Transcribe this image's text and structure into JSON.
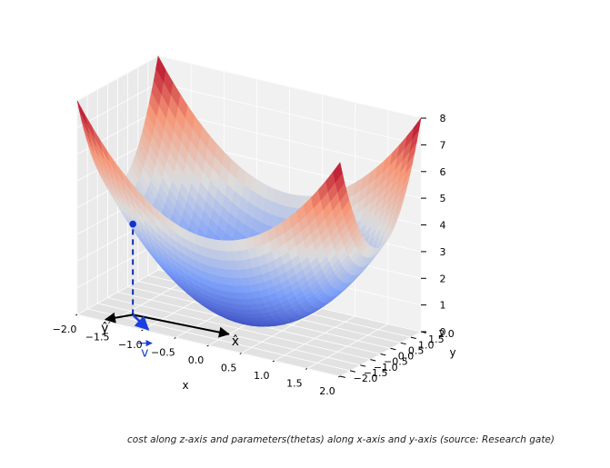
{
  "chart_data": {
    "type": "surface",
    "function": "z = x^2 + y^2",
    "x": [
      -2.0,
      -1.5,
      -1.0,
      -0.5,
      0.0,
      0.5,
      1.0,
      1.5,
      2.0
    ],
    "y": [
      -2.0,
      -1.5,
      -1.0,
      -0.5,
      0.0,
      0.5,
      1.0,
      1.5,
      2.0
    ],
    "z": [
      [
        8.0,
        6.25,
        5.0,
        4.25,
        4.0,
        4.25,
        5.0,
        6.25,
        8.0
      ],
      [
        6.25,
        4.5,
        3.25,
        2.5,
        2.25,
        2.5,
        3.25,
        4.5,
        6.25
      ],
      [
        5.0,
        3.25,
        2.0,
        1.25,
        1.0,
        1.25,
        2.0,
        3.25,
        5.0
      ],
      [
        4.25,
        2.5,
        1.25,
        0.5,
        0.25,
        0.5,
        1.25,
        2.5,
        4.25
      ],
      [
        4.0,
        2.25,
        1.0,
        0.25,
        0.0,
        0.25,
        1.0,
        2.25,
        4.0
      ],
      [
        4.25,
        2.5,
        1.25,
        0.5,
        0.25,
        0.5,
        1.25,
        2.5,
        4.25
      ],
      [
        5.0,
        3.25,
        2.0,
        1.25,
        1.0,
        1.25,
        2.0,
        3.25,
        5.0
      ],
      [
        6.25,
        4.5,
        3.25,
        2.5,
        2.25,
        2.5,
        3.25,
        4.5,
        6.25
      ],
      [
        8.0,
        6.25,
        5.0,
        4.25,
        4.0,
        4.25,
        5.0,
        6.25,
        8.0
      ]
    ],
    "colormap": "coolwarm",
    "xlabel": "x",
    "ylabel": "y",
    "xlim": [
      -2.0,
      2.0
    ],
    "ylim": [
      -2.0,
      2.0
    ],
    "zlim": [
      0,
      8
    ],
    "x_ticks": [
      "−2.0",
      "−1.5",
      "−1.0",
      "−0.5",
      "0.0",
      "0.5",
      "1.0",
      "1.5",
      "2.0"
    ],
    "y_ticks": [
      "−2.0",
      "−1.5",
      "−1.0",
      "−0.5",
      "0.0",
      "0.5",
      "1.0",
      "1.5",
      "2.0"
    ],
    "z_ticks": [
      "0",
      "1",
      "2",
      "3",
      "4",
      "5",
      "6",
      "7",
      "8"
    ],
    "grid": true,
    "point": {
      "x": -1.4,
      "y": -1.2,
      "z": 3.4
    },
    "vectors": [
      {
        "label": "x̂",
        "color": "#000000"
      },
      {
        "label": "ŷ",
        "color": "#000000"
      },
      {
        "label": "v",
        "color": "#1b3fe0"
      }
    ]
  },
  "caption": "cost along z-axis and parameters(thetas) along x-axis and y-axis (source: Research gate)"
}
